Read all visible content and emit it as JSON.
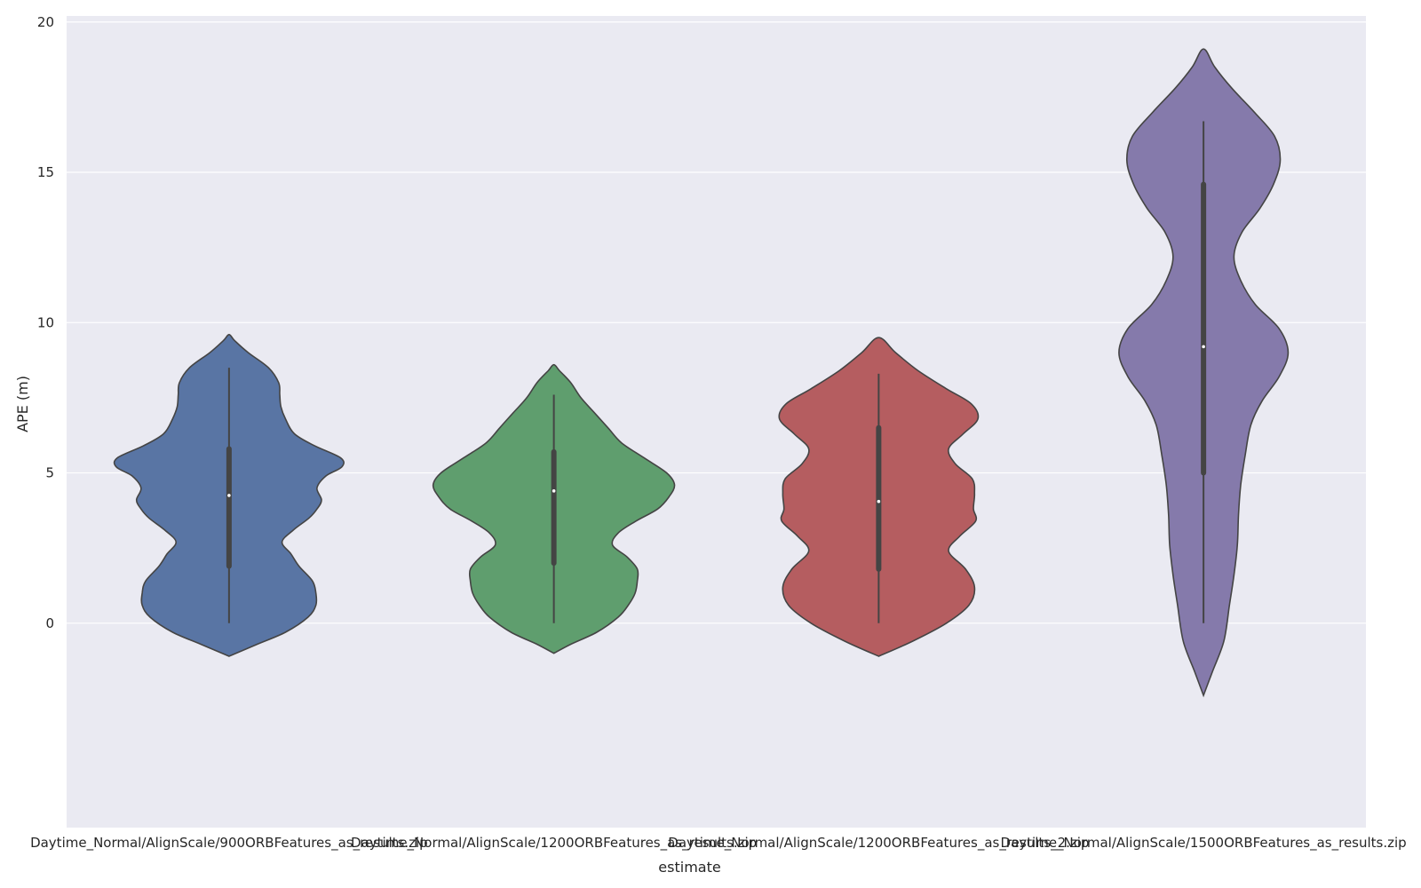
{
  "chart_data": {
    "type": "violin",
    "xlabel": "estimate",
    "ylabel": "APE (m)",
    "ylim": [
      -6.8,
      20.2
    ],
    "yticks": [
      0,
      5,
      10,
      15,
      20
    ],
    "grid": true,
    "background_color": "#eaeaf2",
    "categories": [
      "Daytime_Normal/AlignScale/900ORBFeatures_as_results.zip",
      "Daytime_Normal/AlignScale/1200ORBFeatures_as_results.zip",
      "Daytime_Normal/AlignScale/1200ORBFeatures_as_results_2.zip",
      "Daytime_Normal/AlignScale/1500ORBFeatures_as_results.zip"
    ],
    "series": [
      {
        "color": "#5975a4",
        "min": 0,
        "q1": 1.9,
        "median": 4.25,
        "q3": 5.8,
        "max": 8.5,
        "profile": [
          [
            -1.1,
            0
          ],
          [
            -0.7,
            0.25
          ],
          [
            -0.3,
            0.5
          ],
          [
            0.2,
            0.7
          ],
          [
            0.6,
            0.77
          ],
          [
            1.0,
            0.77
          ],
          [
            1.4,
            0.74
          ],
          [
            1.9,
            0.62
          ],
          [
            2.3,
            0.55
          ],
          [
            2.7,
            0.47
          ],
          [
            3.1,
            0.57
          ],
          [
            3.5,
            0.71
          ],
          [
            3.8,
            0.78
          ],
          [
            4.1,
            0.82
          ],
          [
            4.5,
            0.78
          ],
          [
            4.9,
            0.86
          ],
          [
            5.2,
            1.0
          ],
          [
            5.5,
            0.99
          ],
          [
            5.9,
            0.76
          ],
          [
            6.3,
            0.58
          ],
          [
            6.8,
            0.5
          ],
          [
            7.2,
            0.46
          ],
          [
            7.6,
            0.45
          ],
          [
            8.0,
            0.44
          ],
          [
            8.5,
            0.35
          ],
          [
            9.0,
            0.17
          ],
          [
            9.4,
            0.05
          ],
          [
            9.6,
            0
          ]
        ]
      },
      {
        "color": "#5f9e6e",
        "min": 0,
        "q1": 2.0,
        "median": 4.4,
        "q3": 5.7,
        "max": 7.6,
        "profile": [
          [
            -1.0,
            0
          ],
          [
            -0.7,
            0.15
          ],
          [
            -0.3,
            0.38
          ],
          [
            0.2,
            0.57
          ],
          [
            0.6,
            0.66
          ],
          [
            1.0,
            0.72
          ],
          [
            1.4,
            0.74
          ],
          [
            1.8,
            0.74
          ],
          [
            2.2,
            0.65
          ],
          [
            2.6,
            0.52
          ],
          [
            3.0,
            0.57
          ],
          [
            3.4,
            0.73
          ],
          [
            3.8,
            0.92
          ],
          [
            4.2,
            1.02
          ],
          [
            4.6,
            1.07
          ],
          [
            5.0,
            1.0
          ],
          [
            5.5,
            0.8
          ],
          [
            6.0,
            0.6
          ],
          [
            6.5,
            0.48
          ],
          [
            7.0,
            0.36
          ],
          [
            7.5,
            0.24
          ],
          [
            8.0,
            0.15
          ],
          [
            8.4,
            0.05
          ],
          [
            8.6,
            0
          ]
        ]
      },
      {
        "color": "#b55d60",
        "min": 0,
        "q1": 1.8,
        "median": 4.05,
        "q3": 6.5,
        "max": 8.3,
        "profile": [
          [
            -1.1,
            0
          ],
          [
            -0.6,
            0.3
          ],
          [
            0,
            0.6
          ],
          [
            0.6,
            0.8
          ],
          [
            1.2,
            0.85
          ],
          [
            1.8,
            0.77
          ],
          [
            2.4,
            0.62
          ],
          [
            2.9,
            0.72
          ],
          [
            3.4,
            0.86
          ],
          [
            3.8,
            0.84
          ],
          [
            4.3,
            0.85
          ],
          [
            4.8,
            0.83
          ],
          [
            5.3,
            0.68
          ],
          [
            5.8,
            0.62
          ],
          [
            6.3,
            0.75
          ],
          [
            6.8,
            0.88
          ],
          [
            7.3,
            0.82
          ],
          [
            7.8,
            0.6
          ],
          [
            8.4,
            0.35
          ],
          [
            9.0,
            0.15
          ],
          [
            9.5,
            0
          ]
        ]
      },
      {
        "color": "#857aab",
        "min": 0,
        "q1": 5.0,
        "median": 9.2,
        "q3": 14.6,
        "max": 16.7,
        "profile": [
          [
            -2.4,
            0
          ],
          [
            -1.6,
            0.08
          ],
          [
            -0.6,
            0.18
          ],
          [
            0.6,
            0.23
          ],
          [
            1.6,
            0.27
          ],
          [
            2.6,
            0.3
          ],
          [
            3.6,
            0.31
          ],
          [
            4.6,
            0.33
          ],
          [
            5.6,
            0.37
          ],
          [
            6.6,
            0.42
          ],
          [
            7.4,
            0.52
          ],
          [
            8.2,
            0.67
          ],
          [
            9.0,
            0.75
          ],
          [
            9.8,
            0.67
          ],
          [
            10.6,
            0.46
          ],
          [
            11.4,
            0.33
          ],
          [
            12.2,
            0.27
          ],
          [
            13.0,
            0.34
          ],
          [
            13.8,
            0.5
          ],
          [
            14.6,
            0.62
          ],
          [
            15.4,
            0.68
          ],
          [
            16.2,
            0.63
          ],
          [
            17.0,
            0.45
          ],
          [
            17.8,
            0.25
          ],
          [
            18.5,
            0.1
          ],
          [
            19.1,
            0
          ]
        ]
      }
    ]
  }
}
